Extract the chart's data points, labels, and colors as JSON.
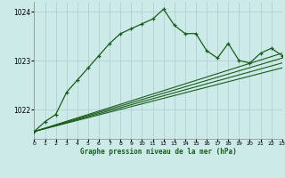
{
  "title": "Graphe pression niveau de la mer (hPa)",
  "background_color": "#cceae8",
  "grid_color": "#aacccc",
  "line_color": "#1a5c1a",
  "xlim": [
    0,
    23
  ],
  "ylim": [
    1021.4,
    1024.2
  ],
  "yticks": [
    1022,
    1023,
    1024
  ],
  "xticks": [
    0,
    1,
    2,
    3,
    4,
    5,
    6,
    7,
    8,
    9,
    10,
    11,
    12,
    13,
    14,
    15,
    16,
    17,
    18,
    19,
    20,
    21,
    22,
    23
  ],
  "main_line": [
    [
      0,
      1021.55
    ],
    [
      1,
      1021.75
    ],
    [
      2,
      1021.9
    ],
    [
      3,
      1022.35
    ],
    [
      4,
      1022.6
    ],
    [
      5,
      1022.85
    ],
    [
      6,
      1023.1
    ],
    [
      7,
      1023.35
    ],
    [
      8,
      1023.55
    ],
    [
      9,
      1023.65
    ],
    [
      10,
      1023.75
    ],
    [
      11,
      1023.85
    ],
    [
      12,
      1024.05
    ],
    [
      13,
      1023.72
    ],
    [
      14,
      1023.55
    ],
    [
      15,
      1023.55
    ],
    [
      16,
      1023.2
    ],
    [
      17,
      1023.05
    ],
    [
      18,
      1023.35
    ],
    [
      19,
      1023.0
    ],
    [
      20,
      1022.95
    ],
    [
      21,
      1023.15
    ],
    [
      22,
      1023.25
    ],
    [
      23,
      1023.1
    ]
  ],
  "smooth_lines": [
    [
      [
        0,
        1021.55
      ],
      [
        23,
        1022.85
      ]
    ],
    [
      [
        0,
        1021.55
      ],
      [
        23,
        1022.95
      ]
    ],
    [
      [
        0,
        1021.55
      ],
      [
        23,
        1023.05
      ]
    ],
    [
      [
        0,
        1021.55
      ],
      [
        23,
        1023.15
      ]
    ]
  ]
}
